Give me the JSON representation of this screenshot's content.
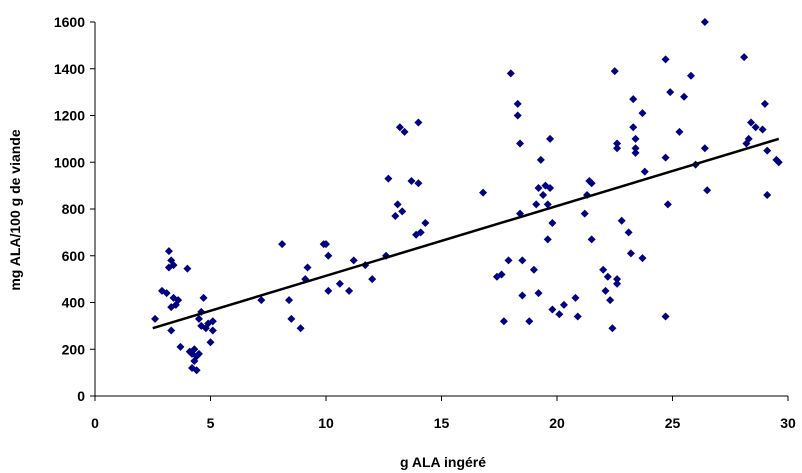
{
  "chart_data": {
    "type": "scatter",
    "xlabel": "g ALA ingéré",
    "ylabel": "mg ALA/100 g de viande",
    "xlim": [
      0,
      30
    ],
    "ylim": [
      0,
      1600
    ],
    "x_ticks": [
      "0",
      "5",
      "10",
      "15",
      "20",
      "25",
      "30"
    ],
    "y_ticks": [
      "0",
      "200",
      "400",
      "600",
      "800",
      "1000",
      "1200",
      "1400",
      "1600"
    ],
    "grid": false,
    "marker": "diamond",
    "marker_color": "#000080",
    "trendline": {
      "type": "linear",
      "x": [
        2.5,
        29.6
      ],
      "y": [
        290,
        1100
      ],
      "color": "#000000"
    },
    "points": [
      [
        2.6,
        330
      ],
      [
        2.9,
        450
      ],
      [
        3.1,
        440
      ],
      [
        3.2,
        620
      ],
      [
        3.2,
        550
      ],
      [
        3.3,
        580
      ],
      [
        3.3,
        380
      ],
      [
        3.4,
        560
      ],
      [
        3.3,
        280
      ],
      [
        3.4,
        420
      ],
      [
        3.5,
        390
      ],
      [
        3.6,
        410
      ],
      [
        3.7,
        210
      ],
      [
        4.0,
        545
      ],
      [
        4.1,
        190
      ],
      [
        4.2,
        180
      ],
      [
        4.2,
        120
      ],
      [
        4.3,
        200
      ],
      [
        4.3,
        150
      ],
      [
        4.4,
        110
      ],
      [
        4.4,
        170
      ],
      [
        4.5,
        180
      ],
      [
        4.5,
        330
      ],
      [
        4.6,
        360
      ],
      [
        4.6,
        300
      ],
      [
        4.7,
        420
      ],
      [
        4.8,
        290
      ],
      [
        4.9,
        310
      ],
      [
        5.0,
        230
      ],
      [
        5.1,
        280
      ],
      [
        5.1,
        320
      ],
      [
        7.2,
        410
      ],
      [
        8.1,
        650
      ],
      [
        8.4,
        410
      ],
      [
        8.5,
        330
      ],
      [
        8.9,
        290
      ],
      [
        9.1,
        500
      ],
      [
        9.2,
        550
      ],
      [
        9.9,
        650
      ],
      [
        10.0,
        650
      ],
      [
        10.1,
        450
      ],
      [
        10.1,
        600
      ],
      [
        10.6,
        480
      ],
      [
        11.0,
        450
      ],
      [
        11.2,
        580
      ],
      [
        11.7,
        560
      ],
      [
        12.0,
        500
      ],
      [
        12.6,
        600
      ],
      [
        12.7,
        930
      ],
      [
        13.0,
        770
      ],
      [
        13.1,
        820
      ],
      [
        13.2,
        1150
      ],
      [
        13.3,
        790
      ],
      [
        13.4,
        1130
      ],
      [
        13.7,
        920
      ],
      [
        13.9,
        690
      ],
      [
        14.0,
        1170
      ],
      [
        14.1,
        700
      ],
      [
        14.3,
        740
      ],
      [
        14.0,
        910
      ],
      [
        16.8,
        870
      ],
      [
        17.4,
        510
      ],
      [
        17.6,
        520
      ],
      [
        17.7,
        320
      ],
      [
        17.9,
        580
      ],
      [
        18.0,
        1380
      ],
      [
        18.3,
        1250
      ],
      [
        18.3,
        1200
      ],
      [
        18.4,
        1080
      ],
      [
        18.4,
        780
      ],
      [
        18.5,
        580
      ],
      [
        18.5,
        430
      ],
      [
        18.8,
        320
      ],
      [
        19.0,
        540
      ],
      [
        19.1,
        820
      ],
      [
        19.2,
        890
      ],
      [
        19.2,
        440
      ],
      [
        19.3,
        1010
      ],
      [
        19.4,
        860
      ],
      [
        19.5,
        900
      ],
      [
        19.6,
        820
      ],
      [
        19.6,
        670
      ],
      [
        19.7,
        1100
      ],
      [
        19.8,
        740
      ],
      [
        19.8,
        370
      ],
      [
        19.7,
        890
      ],
      [
        20.1,
        350
      ],
      [
        20.3,
        390
      ],
      [
        20.8,
        420
      ],
      [
        20.9,
        340
      ],
      [
        21.2,
        780
      ],
      [
        21.3,
        860
      ],
      [
        21.4,
        920
      ],
      [
        21.5,
        910
      ],
      [
        21.5,
        670
      ],
      [
        22.0,
        540
      ],
      [
        22.1,
        450
      ],
      [
        22.2,
        510
      ],
      [
        22.3,
        410
      ],
      [
        22.4,
        290
      ],
      [
        22.5,
        1390
      ],
      [
        22.6,
        1080
      ],
      [
        22.6,
        1060
      ],
      [
        22.6,
        500
      ],
      [
        22.6,
        480
      ],
      [
        22.8,
        750
      ],
      [
        23.1,
        700
      ],
      [
        23.2,
        610
      ],
      [
        23.3,
        1270
      ],
      [
        23.3,
        1150
      ],
      [
        23.4,
        1100
      ],
      [
        23.4,
        1060
      ],
      [
        23.4,
        1040
      ],
      [
        23.7,
        1210
      ],
      [
        23.7,
        590
      ],
      [
        23.8,
        960
      ],
      [
        24.7,
        1440
      ],
      [
        24.7,
        1020
      ],
      [
        24.7,
        340
      ],
      [
        24.8,
        820
      ],
      [
        24.9,
        1300
      ],
      [
        25.3,
        1130
      ],
      [
        25.5,
        1280
      ],
      [
        25.8,
        1370
      ],
      [
        26.0,
        990
      ],
      [
        26.4,
        1600
      ],
      [
        26.4,
        1060
      ],
      [
        26.5,
        880
      ],
      [
        28.1,
        1450
      ],
      [
        28.2,
        1080
      ],
      [
        28.3,
        1100
      ],
      [
        28.4,
        1170
      ],
      [
        28.6,
        1150
      ],
      [
        28.9,
        1140
      ],
      [
        29.0,
        1250
      ],
      [
        29.1,
        860
      ],
      [
        29.1,
        1050
      ],
      [
        29.5,
        1010
      ],
      [
        29.6,
        1000
      ]
    ]
  }
}
